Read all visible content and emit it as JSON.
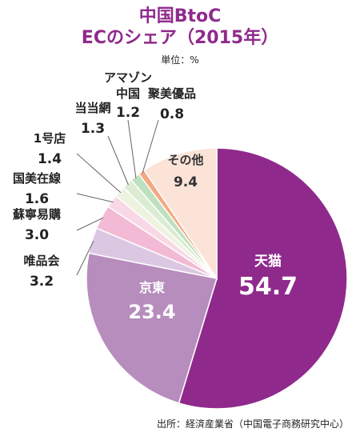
{
  "chart_data": {
    "type": "pie",
    "title": "中国BtoC",
    "subtitle": "ECのシェア（2015年）",
    "unit_label": "単位：%",
    "slices": [
      {
        "label": "天猫",
        "value": 54.7,
        "value_text": "54.7",
        "color": "#8f2a8c"
      },
      {
        "label": "京東",
        "value": 23.4,
        "value_text": "23.4",
        "color": "#b78dbd"
      },
      {
        "label": "唯品会",
        "value": 3.2,
        "value_text": "3.2",
        "color": "#dcc7e3"
      },
      {
        "label": "蘇寧易購",
        "value": 3.0,
        "value_text": "3.0",
        "color": "#f2bad4"
      },
      {
        "label": "国美在線",
        "value": 1.6,
        "value_text": "1.6",
        "color": "#f8d8e4"
      },
      {
        "label": "1号店",
        "value": 1.4,
        "value_text": "1.4",
        "color": "#eef3e0"
      },
      {
        "label": "当当網",
        "value": 1.3,
        "value_text": "1.3",
        "color": "#dbecd2"
      },
      {
        "label": "アマゾン中国",
        "value": 1.2,
        "value_text": "1.2",
        "color": "#bfe0bf"
      },
      {
        "label": "聚美優品",
        "value": 0.8,
        "value_text": "0.8",
        "color": "#f4a882"
      },
      {
        "label": "その他",
        "value": 9.4,
        "value_text": "9.4",
        "color": "#fbe3d8"
      }
    ],
    "source": "出所：経済産業省（中国電子商務研究中心）"
  }
}
